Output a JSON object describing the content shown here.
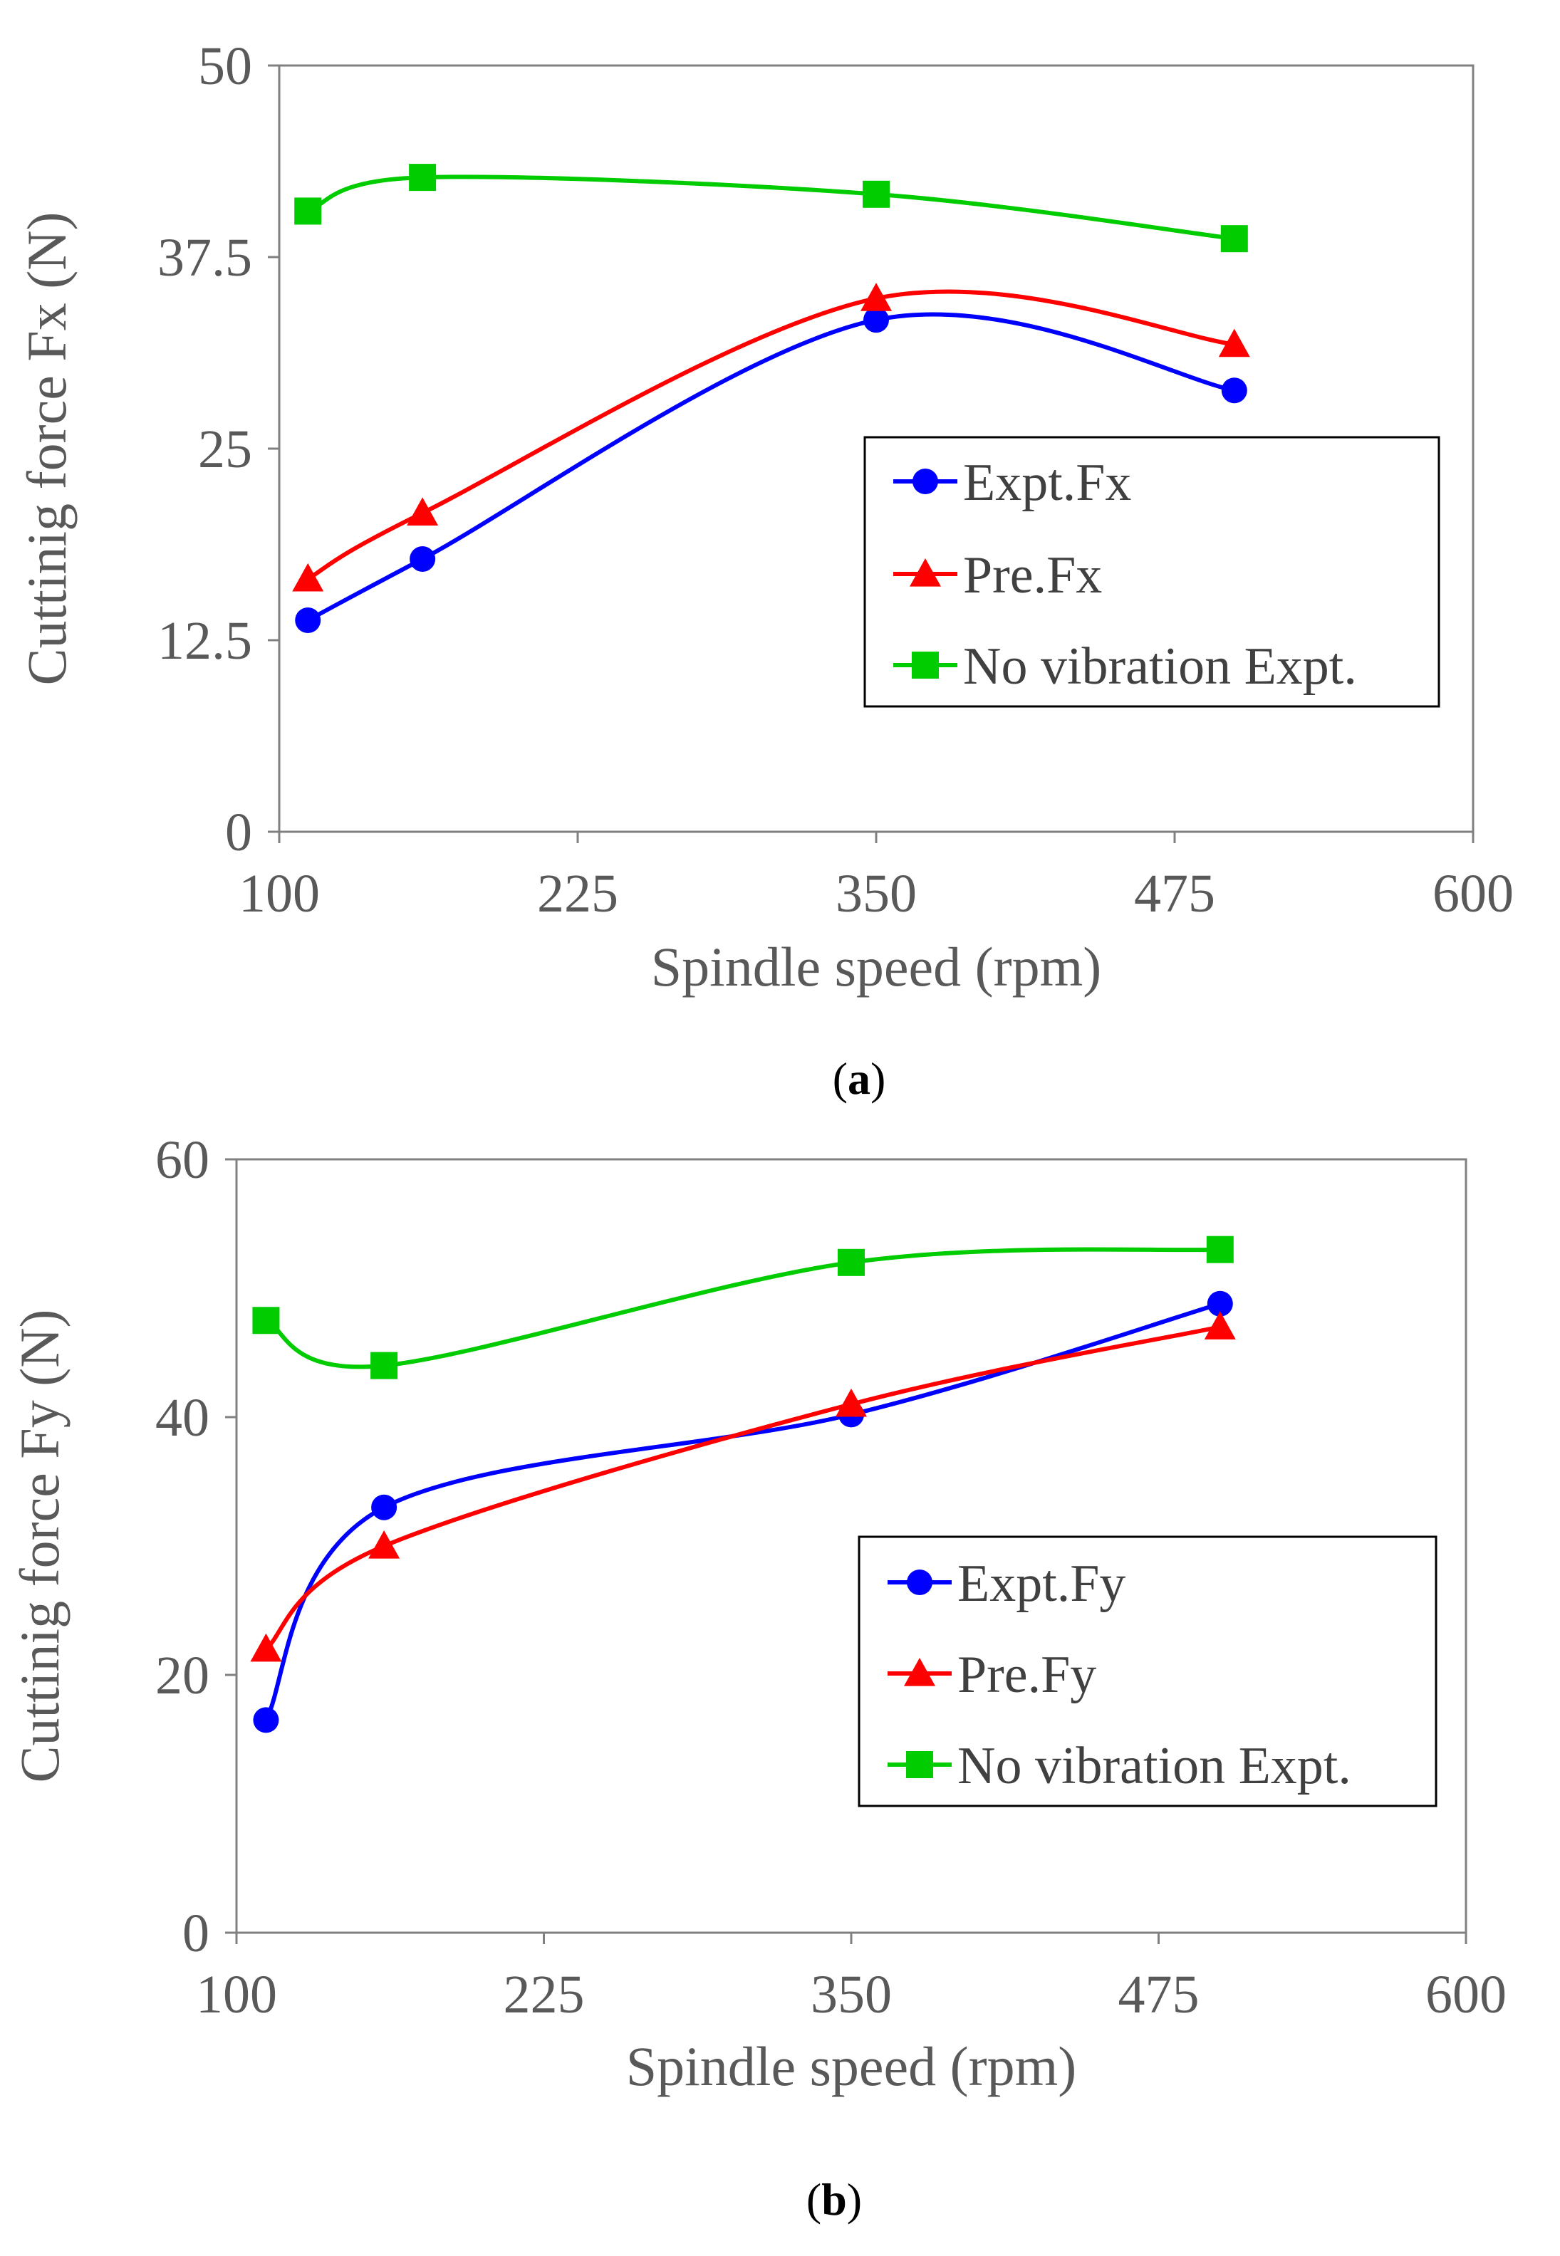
{
  "chart_data": [
    {
      "type": "line",
      "panel_label": "a",
      "xlabel": "Spindle speed (rpm)",
      "ylabel": "Cuttinig force Fx (N)",
      "xlim": [
        100,
        600
      ],
      "ylim": [
        0,
        50
      ],
      "xticks": [
        "100",
        "225",
        "350",
        "475",
        "600"
      ],
      "yticks": [
        "0",
        "12.5",
        "25",
        "37.5",
        "50"
      ],
      "legend_position": "center-right",
      "x": [
        112,
        160,
        350,
        500
      ],
      "series": [
        {
          "name": "Expt.Fx",
          "color": "#0000ff",
          "marker": "circle",
          "values": [
            13.8,
            17.8,
            33.4,
            28.8
          ]
        },
        {
          "name": "Pre.Fx",
          "color": "#ff0000",
          "marker": "triangle",
          "values": [
            16.5,
            20.8,
            34.8,
            31.8
          ]
        },
        {
          "name": "No vibration Expt.",
          "color": "#00cc00",
          "marker": "square",
          "values": [
            40.5,
            42.7,
            41.6,
            38.7
          ]
        }
      ]
    },
    {
      "type": "line",
      "panel_label": "b",
      "xlabel": "Spindle speed (rpm)",
      "ylabel": "Cuttinig force Fy (N)",
      "xlim": [
        100,
        600
      ],
      "ylim": [
        0,
        60
      ],
      "xticks": [
        "100",
        "225",
        "350",
        "475",
        "600"
      ],
      "yticks": [
        "0",
        "20",
        "40",
        "60"
      ],
      "legend_position": "center-right",
      "x": [
        112,
        160,
        350,
        500
      ],
      "series": [
        {
          "name": "Expt.Fy",
          "color": "#0000ff",
          "marker": "circle",
          "values": [
            16.5,
            33.0,
            40.2,
            48.8
          ]
        },
        {
          "name": "Pre.Fy",
          "color": "#ff0000",
          "marker": "triangle",
          "values": [
            22.0,
            30.0,
            41.0,
            47.0
          ]
        },
        {
          "name": "No vibration Expt.",
          "color": "#00cc00",
          "marker": "square",
          "values": [
            47.5,
            44.0,
            52.0,
            53.0
          ]
        }
      ]
    }
  ]
}
